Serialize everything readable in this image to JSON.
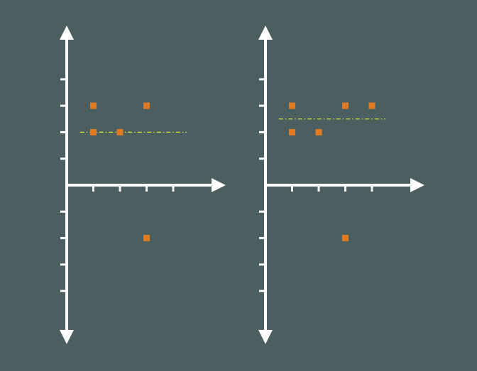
{
  "colors": {
    "background": "#4b5f60",
    "axis": "#ffffff",
    "point": "#e07b24",
    "mean_line": "#d8e23a"
  },
  "chart_data": [
    {
      "type": "scatter",
      "title": "",
      "xlabel": "",
      "ylabel": "",
      "xlim": [
        0,
        5.6
      ],
      "ylim": [
        -5.8,
        5.8
      ],
      "x_ticks": [
        1,
        2,
        3,
        4
      ],
      "y_ticks": [
        -4,
        -3,
        -2,
        -1,
        1,
        2,
        3,
        4
      ],
      "grid": false,
      "tick_labels_shown": false,
      "points": [
        {
          "x": 1,
          "y": 3
        },
        {
          "x": 3,
          "y": 3
        },
        {
          "x": 1,
          "y": 2
        },
        {
          "x": 2,
          "y": 2
        },
        {
          "x": 3,
          "y": -2
        }
      ],
      "mean_line": {
        "y": 2,
        "x_start": 0.5,
        "x_end": 4.5,
        "style": "dash-dot"
      }
    },
    {
      "type": "scatter",
      "title": "",
      "xlabel": "",
      "ylabel": "",
      "xlim": [
        0,
        5.6
      ],
      "ylim": [
        -5.8,
        5.8
      ],
      "x_ticks": [
        1,
        2,
        3,
        4
      ],
      "y_ticks": [
        -4,
        -3,
        -2,
        -1,
        1,
        2,
        3,
        4
      ],
      "grid": false,
      "tick_labels_shown": false,
      "points": [
        {
          "x": 1,
          "y": 3
        },
        {
          "x": 3,
          "y": 3
        },
        {
          "x": 4,
          "y": 3
        },
        {
          "x": 1,
          "y": 2
        },
        {
          "x": 2,
          "y": 2
        },
        {
          "x": 3,
          "y": -2
        }
      ],
      "mean_line": {
        "y": 2.5,
        "x_start": 0.5,
        "x_end": 4.5,
        "style": "dash-dot"
      }
    }
  ]
}
